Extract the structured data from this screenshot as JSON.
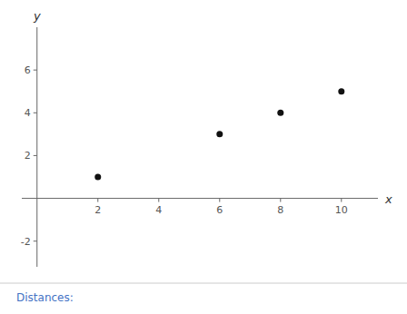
{
  "chart_data": {
    "type": "scatter",
    "x": [
      2,
      6,
      8,
      10
    ],
    "values": [
      1,
      3,
      4,
      5
    ],
    "color": "#111111",
    "xlim": [
      -0.5,
      11.2
    ],
    "ylim": [
      -3.2,
      8.0
    ],
    "xticks": [
      2,
      4,
      6,
      8,
      10
    ],
    "yticks": [
      -2,
      2,
      4,
      6
    ],
    "x_label": "x",
    "y_label": "y",
    "grid": false,
    "annotations": [
      {
        "text": "Distances:",
        "color": "#4472c4"
      }
    ]
  }
}
